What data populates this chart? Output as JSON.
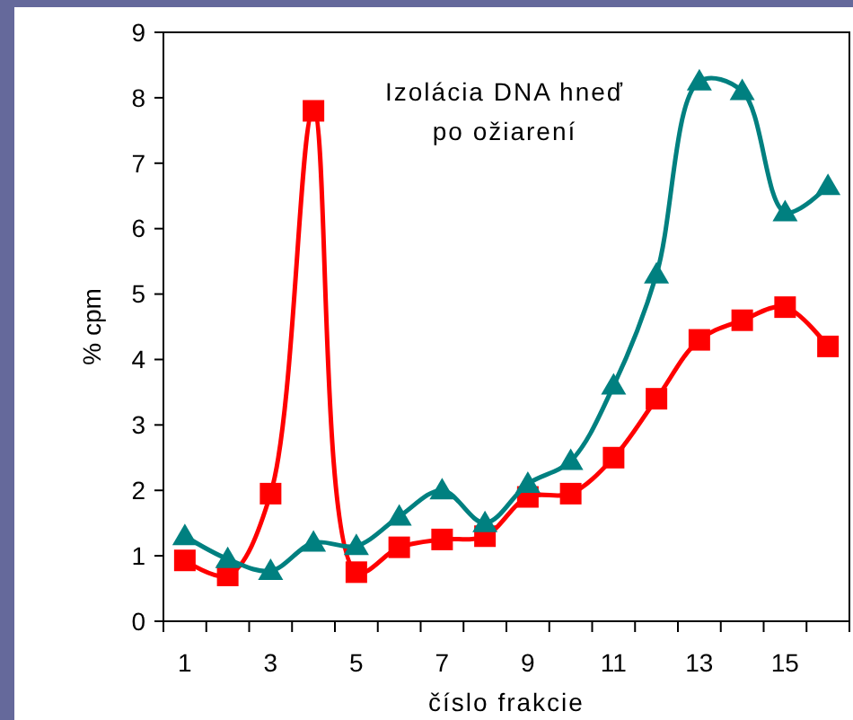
{
  "chart_data": {
    "type": "line",
    "title": "Izolácia DNA hneď po ožiarení",
    "xlabel": "číslo frakcie",
    "ylabel": "% cpm",
    "x": [
      1,
      2,
      3,
      4,
      5,
      6,
      7,
      8,
      9,
      10,
      11,
      12,
      13,
      14,
      15,
      16
    ],
    "xlim": [
      0.5,
      16.5
    ],
    "xticks": [
      {
        "value": 0.5,
        "label": null
      },
      1,
      {
        "value": 1.5,
        "label": null
      },
      {
        "value": 2.5,
        "label": null
      },
      3,
      {
        "value": 3.5,
        "label": null
      },
      {
        "value": 4.5,
        "label": null
      },
      5,
      {
        "value": 5.5,
        "label": null
      },
      {
        "value": 6.5,
        "label": null
      },
      7,
      {
        "value": 7.5,
        "label": null
      },
      {
        "value": 8.5,
        "label": null
      },
      9,
      {
        "value": 9.5,
        "label": null
      },
      {
        "value": 10.5,
        "label": null
      },
      11,
      {
        "value": 11.5,
        "label": null
      },
      {
        "value": 12.5,
        "label": null
      },
      13,
      {
        "value": 13.5,
        "label": null
      },
      {
        "value": 14.5,
        "label": null
      },
      15,
      {
        "value": 15.5,
        "label": null
      },
      {
        "value": 16.5,
        "label": null
      }
    ],
    "series": [
      {
        "color": "#ff0000",
        "marker": "square",
        "values": [
          0.93,
          0.7,
          1.95,
          7.8,
          0.75,
          1.13,
          1.25,
          1.3,
          1.9,
          1.95,
          2.5,
          3.4,
          4.3,
          4.6,
          4.8,
          4.2
        ]
      },
      {
        "color": "#008080",
        "marker": "triangle",
        "values": [
          1.3,
          0.95,
          0.77,
          1.2,
          1.15,
          1.6,
          2.0,
          1.5,
          2.1,
          2.45,
          3.6,
          5.3,
          8.25,
          8.1,
          6.25,
          6.65
        ]
      }
    ],
    "ylim": [
      0,
      9
    ],
    "yticks": [
      0,
      1,
      2,
      3,
      4,
      5,
      6,
      7,
      8,
      9
    ]
  }
}
